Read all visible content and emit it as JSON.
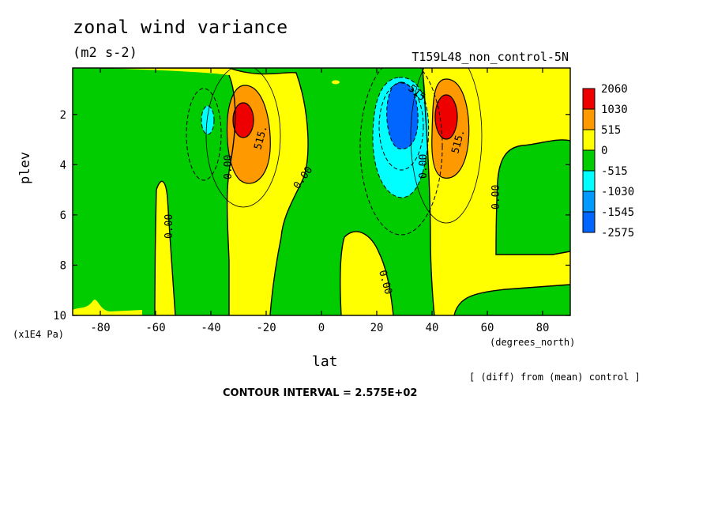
{
  "chart_data": {
    "type": "contour",
    "title": "zonal wind variance",
    "units": "(m2 s-2)",
    "experiment": "T159L48_non_control-5N",
    "xlabel": "lat",
    "xunits": "(degrees_north)",
    "ylabel": "plev",
    "yunits": "(x1E4 Pa)",
    "note": "[ (diff) from (mean) control ]",
    "contour_interval_text": "CONTOUR INTERVAL = 2.575E+02",
    "contour_interval": 257.5,
    "xlim": [
      -90,
      90
    ],
    "ylim": [
      10,
      0.15
    ],
    "x_ticks": [
      -80,
      -60,
      -40,
      -20,
      0,
      20,
      40,
      60,
      80
    ],
    "y_ticks": [
      2,
      4,
      6,
      8,
      10
    ],
    "colorbar": {
      "levels": [
        "2060",
        "1030",
        "515",
        "0",
        "-515",
        "-1030",
        "-1545",
        "-2575"
      ],
      "colors": [
        "#ee0000",
        "#ff9900",
        "#ffff00",
        "#00cc00",
        "#00ffff",
        "#0099ff",
        "#0066ff"
      ]
    },
    "background_color": "#00cc00",
    "features": [
      {
        "kind": "positive_max",
        "lat": -27,
        "plev": 2.2,
        "peak": 1400
      },
      {
        "kind": "positive_max",
        "lat": 45,
        "plev": 2.0,
        "peak": 1900
      },
      {
        "kind": "negative_min",
        "lat": 29,
        "plev": 2.0,
        "peak": -1600
      },
      {
        "kind": "negative_min",
        "lat": -43,
        "plev": 2.2,
        "peak": -700
      }
    ],
    "contour_labels": [
      "515.",
      "0.00",
      "0.00",
      "0.00",
      "515.",
      "515.",
      "0.00",
      "0.00",
      "0.00"
    ]
  }
}
